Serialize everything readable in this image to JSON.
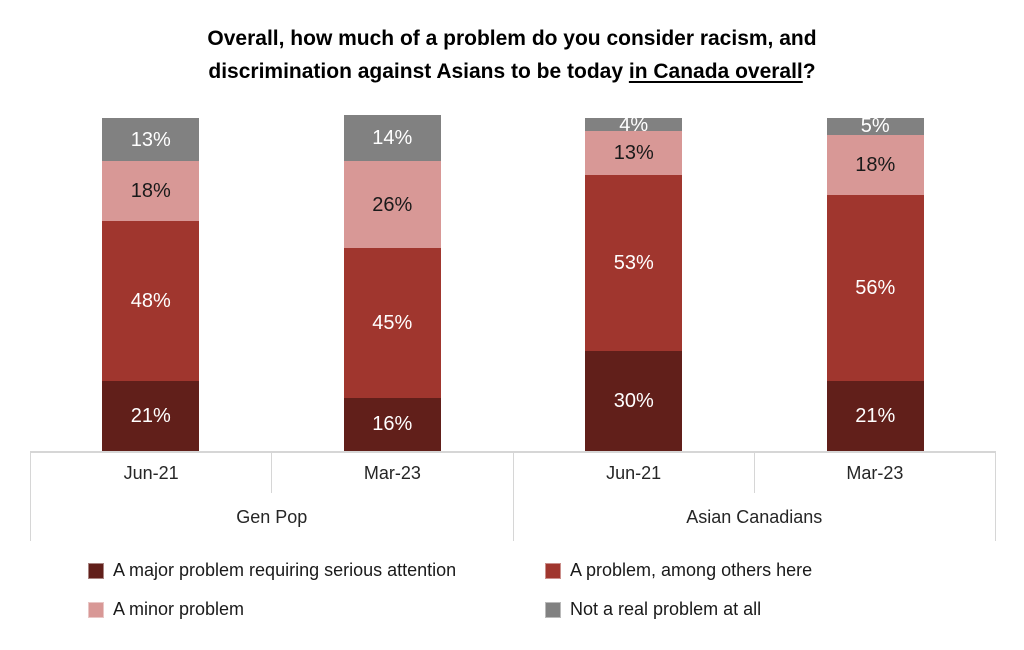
{
  "title": {
    "line1": "Overall, how much of a problem do you consider racism, and",
    "line2_prefix": "discrimination against Asians to be today ",
    "line2_underlined": "in Canada overall",
    "line2_suffix": "?"
  },
  "chart_data": {
    "type": "bar",
    "stacked": true,
    "orientation": "vertical",
    "value_suffix": "%",
    "ylim": [
      0,
      100
    ],
    "grid": false,
    "legend_position": "bottom",
    "categories": [
      "Gen Pop Jun-21",
      "Gen Pop Mar-23",
      "Asian Canadians Jun-21",
      "Asian Canadians Mar-23"
    ],
    "groups": [
      {
        "label": "Gen Pop",
        "periods": [
          "Jun-21",
          "Mar-23"
        ]
      },
      {
        "label": "Asian Canadians",
        "periods": [
          "Jun-21",
          "Mar-23"
        ]
      }
    ],
    "series": [
      {
        "name": "A major problem requiring serious attention",
        "color": "#611f1a",
        "label_color": "#ffffff",
        "values": [
          21,
          16,
          30,
          21
        ]
      },
      {
        "name": "A problem, among others here",
        "color": "#a0362e",
        "label_color": "#ffffff",
        "values": [
          48,
          45,
          53,
          56
        ]
      },
      {
        "name": "A minor problem",
        "color": "#d89896",
        "label_color": "#1a1a1a",
        "values": [
          18,
          26,
          13,
          18
        ]
      },
      {
        "name": "Not a real problem at all",
        "color": "#818181",
        "label_color": "#ffffff",
        "values": [
          13,
          14,
          4,
          5
        ]
      }
    ]
  }
}
